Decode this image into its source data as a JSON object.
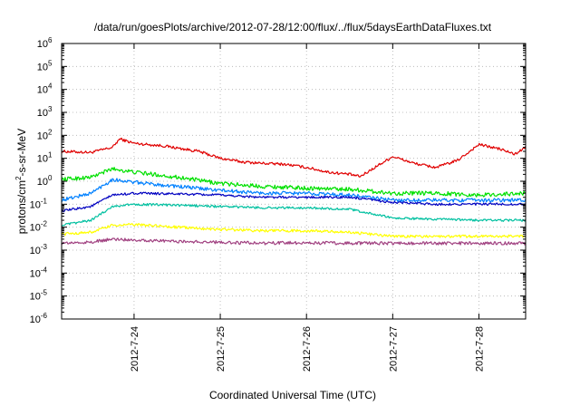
{
  "chart_data": {
    "type": "line",
    "title": "/data/run/goesPlots/archive/2012-07-28/12:00/flux/../flux/5daysEarthDataFluxes.txt",
    "xlabel": "Coordinated Universal Time (UTC)",
    "ylabel": {
      "base": "protons/cm",
      "sup": "2",
      "rest": "-s-sr-MeV"
    },
    "yscale": "log",
    "ylim": [
      1e-06,
      1000000.0
    ],
    "xlim": [
      "2012-07-23T03:50",
      "2012-07-28T13:00"
    ],
    "y_ticks": [
      {
        "value": 1e-06,
        "exp": "-6"
      },
      {
        "value": 1e-05,
        "exp": "-5"
      },
      {
        "value": 0.0001,
        "exp": "-4"
      },
      {
        "value": 0.001,
        "exp": "-3"
      },
      {
        "value": 0.01,
        "exp": "-2"
      },
      {
        "value": 0.1,
        "exp": "-1"
      },
      {
        "value": 1,
        "exp": "0"
      },
      {
        "value": 10,
        "exp": "1"
      },
      {
        "value": 100,
        "exp": "2"
      },
      {
        "value": 1000,
        "exp": "3"
      },
      {
        "value": 10000,
        "exp": "4"
      },
      {
        "value": 100000,
        "exp": "5"
      },
      {
        "value": 1000000,
        "exp": "6"
      }
    ],
    "x_ticks": [
      {
        "value": "2012-07-24T00:00",
        "label": "2012-7-24"
      },
      {
        "value": "2012-07-25T00:00",
        "label": "2012-7-25"
      },
      {
        "value": "2012-07-26T00:00",
        "label": "2012-7-26"
      },
      {
        "value": "2012-07-27T00:00",
        "label": "2012-7-27"
      },
      {
        "value": "2012-07-28T00:00",
        "label": "2012-7-28"
      }
    ],
    "grid": true,
    "series": [
      {
        "color": "#e00000",
        "noise": 0.06,
        "x": [
          "2012-07-23T03:50",
          "2012-07-23T12:00",
          "2012-07-23T18:00",
          "2012-07-23T20:00",
          "2012-07-24T00:00",
          "2012-07-24T08:00",
          "2012-07-24T18:00",
          "2012-07-25T00:00",
          "2012-07-25T06:00",
          "2012-07-25T12:00",
          "2012-07-25T18:00",
          "2012-07-26T00:00",
          "2012-07-26T06:00",
          "2012-07-26T12:00",
          "2012-07-26T15:00",
          "2012-07-26T20:00",
          "2012-07-27T00:00",
          "2012-07-27T06:00",
          "2012-07-27T12:00",
          "2012-07-27T18:00",
          "2012-07-28T00:00",
          "2012-07-28T06:00",
          "2012-07-28T10:00",
          "2012-07-28T13:00"
        ],
        "y": [
          20,
          18,
          30,
          70,
          45,
          35,
          20,
          10,
          7,
          6,
          5.5,
          4,
          2.5,
          2,
          1.6,
          5,
          12,
          6,
          4,
          8,
          40,
          25,
          15,
          30
        ]
      },
      {
        "color": "#00e000",
        "noise": 0.09,
        "x": [
          "2012-07-23T03:50",
          "2012-07-23T12:00",
          "2012-07-23T18:00",
          "2012-07-24T00:00",
          "2012-07-24T12:00",
          "2012-07-25T00:00",
          "2012-07-25T12:00",
          "2012-07-26T00:00",
          "2012-07-26T12:00",
          "2012-07-27T00:00",
          "2012-07-27T12:00",
          "2012-07-28T00:00",
          "2012-07-28T13:00"
        ],
        "y": [
          1.2,
          1.5,
          3.5,
          2.5,
          1.5,
          0.8,
          0.6,
          0.5,
          0.45,
          0.3,
          0.3,
          0.25,
          0.3
        ]
      },
      {
        "color": "#0080ff",
        "noise": 0.08,
        "x": [
          "2012-07-23T03:50",
          "2012-07-23T12:00",
          "2012-07-23T18:00",
          "2012-07-24T00:00",
          "2012-07-24T12:00",
          "2012-07-25T00:00",
          "2012-07-25T12:00",
          "2012-07-26T00:00",
          "2012-07-26T12:00",
          "2012-07-27T00:00",
          "2012-07-27T12:00",
          "2012-07-28T00:00",
          "2012-07-28T13:00"
        ],
        "y": [
          0.15,
          0.3,
          1.2,
          0.9,
          0.6,
          0.4,
          0.3,
          0.3,
          0.25,
          0.15,
          0.15,
          0.15,
          0.15
        ]
      },
      {
        "color": "#0000c0",
        "noise": 0.05,
        "x": [
          "2012-07-23T03:50",
          "2012-07-23T12:00",
          "2012-07-23T18:00",
          "2012-07-24T00:00",
          "2012-07-24T12:00",
          "2012-07-25T00:00",
          "2012-07-25T12:00",
          "2012-07-26T00:00",
          "2012-07-26T12:00",
          "2012-07-27T00:00",
          "2012-07-27T12:00",
          "2012-07-28T00:00",
          "2012-07-28T13:00"
        ],
        "y": [
          0.05,
          0.08,
          0.25,
          0.3,
          0.28,
          0.25,
          0.2,
          0.2,
          0.2,
          0.12,
          0.1,
          0.1,
          0.1
        ]
      },
      {
        "color": "#00c0a0",
        "noise": 0.05,
        "x": [
          "2012-07-23T03:50",
          "2012-07-23T12:00",
          "2012-07-23T18:00",
          "2012-07-24T00:00",
          "2012-07-24T12:00",
          "2012-07-25T00:00",
          "2012-07-25T12:00",
          "2012-07-26T00:00",
          "2012-07-26T12:00",
          "2012-07-27T00:00",
          "2012-07-27T12:00",
          "2012-07-28T00:00",
          "2012-07-28T13:00"
        ],
        "y": [
          0.012,
          0.02,
          0.08,
          0.1,
          0.09,
          0.08,
          0.07,
          0.07,
          0.06,
          0.025,
          0.022,
          0.02,
          0.02
        ]
      },
      {
        "color": "#ffff00",
        "noise": 0.06,
        "x": [
          "2012-07-23T03:50",
          "2012-07-23T12:00",
          "2012-07-23T18:00",
          "2012-07-24T00:00",
          "2012-07-24T12:00",
          "2012-07-25T00:00",
          "2012-07-25T12:00",
          "2012-07-26T00:00",
          "2012-07-26T12:00",
          "2012-07-27T00:00",
          "2012-07-27T12:00",
          "2012-07-28T00:00",
          "2012-07-28T13:00"
        ],
        "y": [
          0.005,
          0.006,
          0.012,
          0.013,
          0.01,
          0.008,
          0.007,
          0.007,
          0.006,
          0.004,
          0.004,
          0.004,
          0.004
        ]
      },
      {
        "color": "#a04080",
        "noise": 0.07,
        "x": [
          "2012-07-23T03:50",
          "2012-07-23T12:00",
          "2012-07-23T18:00",
          "2012-07-24T00:00",
          "2012-07-24T12:00",
          "2012-07-25T00:00",
          "2012-07-25T12:00",
          "2012-07-26T00:00",
          "2012-07-26T12:00",
          "2012-07-27T00:00",
          "2012-07-27T12:00",
          "2012-07-28T00:00",
          "2012-07-28T13:00"
        ],
        "y": [
          0.002,
          0.0022,
          0.003,
          0.0028,
          0.0024,
          0.0022,
          0.002,
          0.0021,
          0.002,
          0.002,
          0.002,
          0.002,
          0.002
        ]
      }
    ]
  }
}
